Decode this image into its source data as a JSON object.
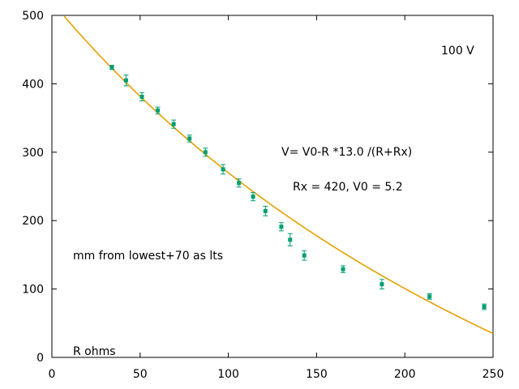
{
  "chart_data": {
    "type": "scatter",
    "title": "",
    "xlabel": "",
    "ylabel": "",
    "xlim": [
      0,
      250
    ],
    "ylim": [
      0,
      500
    ],
    "grid": false,
    "x_ticks": [
      "0",
      "50",
      "100",
      "150",
      "200",
      "250"
    ],
    "y_ticks": [
      "0",
      "100",
      "200",
      "300",
      "400",
      "500"
    ],
    "series": [
      {
        "kind": "points_with_errorbars",
        "color": "#009e73",
        "points": [
          {
            "x": 34,
            "y": 424,
            "err": 3
          },
          {
            "x": 42,
            "y": 405,
            "err": 8
          },
          {
            "x": 51,
            "y": 381,
            "err": 6
          },
          {
            "x": 60,
            "y": 361,
            "err": 5
          },
          {
            "x": 69,
            "y": 341,
            "err": 6
          },
          {
            "x": 78,
            "y": 320,
            "err": 5
          },
          {
            "x": 87,
            "y": 300,
            "err": 6
          },
          {
            "x": 97,
            "y": 275,
            "err": 7
          },
          {
            "x": 106,
            "y": 255,
            "err": 6
          },
          {
            "x": 114,
            "y": 235,
            "err": 6
          },
          {
            "x": 121,
            "y": 214,
            "err": 7
          },
          {
            "x": 130,
            "y": 191,
            "err": 6
          },
          {
            "x": 135,
            "y": 172,
            "err": 9
          },
          {
            "x": 143,
            "y": 149,
            "err": 7
          },
          {
            "x": 165,
            "y": 129,
            "err": 5
          },
          {
            "x": 187,
            "y": 107,
            "err": 7
          },
          {
            "x": 214,
            "y": 89,
            "err": 4
          },
          {
            "x": 245,
            "y": 74,
            "err": 4
          }
        ]
      },
      {
        "kind": "fit_curve",
        "color": "#e6a000",
        "formula": "y = 100*(V0 - R*13.0/(R+Rx))",
        "params": {
          "V0": 5.2,
          "Rx": 420,
          "scale": 100,
          "factor": 13.0
        }
      }
    ],
    "annotations": {
      "top_label": "100 V",
      "formula": "V= V0-R *13.0 /(R+Rx)",
      "params": "Rx = 420, V0 = 5.2",
      "note": "mm from lowest+70   as lts",
      "axis_note": "R ohms"
    }
  }
}
